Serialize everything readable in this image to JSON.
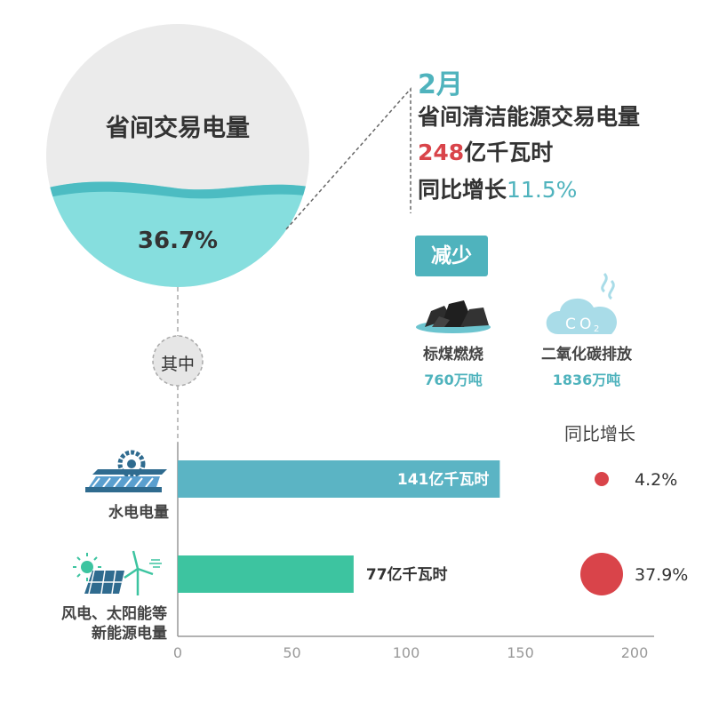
{
  "circle": {
    "label": "省间交易电量",
    "percent": "36.7%",
    "percent_value": 36.7,
    "connector": "其中"
  },
  "headline": {
    "month": "2月",
    "title": "省间清洁能源交易电量",
    "amount_number": "248",
    "amount_unit": "亿千瓦时",
    "growth_prefix": "同比增长",
    "growth_value": "11.5%"
  },
  "reduction": {
    "badge": "减少",
    "coal": {
      "name": "标煤燃烧",
      "value": "760万吨",
      "icon": "coal-icon"
    },
    "co2": {
      "name": "二氧化碳排放",
      "value": "1836万吨",
      "icon": "co2-cloud-icon",
      "icon_text": "CO2"
    }
  },
  "chart_data": {
    "type": "bar",
    "orientation": "horizontal",
    "categories": [
      "水电电量",
      "风电、太阳能等新能源电量"
    ],
    "category_lines": [
      [
        "水电电量"
      ],
      [
        "风电、太阳能等",
        "新能源电量"
      ]
    ],
    "values": [
      141,
      77
    ],
    "value_labels": [
      "141亿千瓦时",
      "77亿千瓦时"
    ],
    "xlim": [
      0,
      200
    ],
    "xticks": [
      0,
      50,
      100,
      150,
      200
    ],
    "colors": [
      "#5bb4c4",
      "#3dc4a0"
    ],
    "growth_title": "同比增长",
    "growth": [
      4.2,
      37.9
    ],
    "growth_labels": [
      "4.2%",
      "37.9%"
    ],
    "growth_color": "#d9444a",
    "category_icons": [
      "hydro-icon",
      "wind-solar-icon"
    ]
  }
}
